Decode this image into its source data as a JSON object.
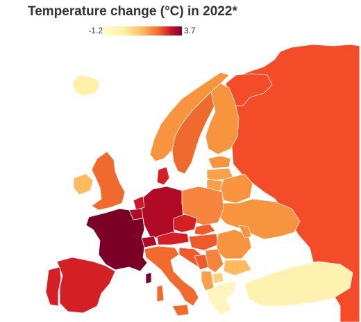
{
  "title": "Temperature change (°C) in 2022*",
  "legend": {
    "min_label": "-1.2",
    "max_label": "3.7",
    "min_value": -1.2,
    "max_value": 3.7,
    "colors": [
      "#fffdc4",
      "#fff0a6",
      "#ffb95e",
      "#f06a2e",
      "#cf1626",
      "#7a0028"
    ]
  },
  "regions": [
    {
      "name": "France",
      "color": "#7a0028"
    },
    {
      "name": "Germany",
      "color": "#b00a26"
    },
    {
      "name": "Spain",
      "color": "#d42024"
    },
    {
      "name": "Russia",
      "color": "#f44c28"
    },
    {
      "name": "Poland",
      "color": "#f6843c"
    },
    {
      "name": "Turkey",
      "color": "#fff2b0"
    }
  ]
}
